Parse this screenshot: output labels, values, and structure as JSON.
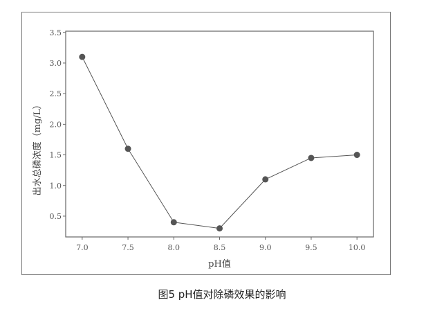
{
  "chart_data": {
    "type": "line",
    "title": "",
    "xlabel": "pH值",
    "ylabel": "出水总磷浓度（mg/L）",
    "x": [
      7.0,
      7.5,
      8.0,
      8.5,
      9.0,
      9.5,
      10.0
    ],
    "series": [
      {
        "values": [
          3.1,
          1.6,
          0.4,
          0.3,
          1.1,
          1.45,
          1.5
        ]
      }
    ],
    "xticks": [
      "7.0",
      "7.5",
      "8.0",
      "8.5",
      "9.0",
      "9.5",
      "10.0"
    ],
    "yticks": [
      "0.5",
      "1.0",
      "1.5",
      "2.0",
      "2.5",
      "3.0",
      "3.5"
    ],
    "xlim": [
      6.82,
      10.18
    ],
    "ylim": [
      0.16,
      3.52
    ],
    "grid": false,
    "line_color": "#555555",
    "marker_color": "#555555"
  },
  "caption": "图5  pH值对除磷效果的影响"
}
